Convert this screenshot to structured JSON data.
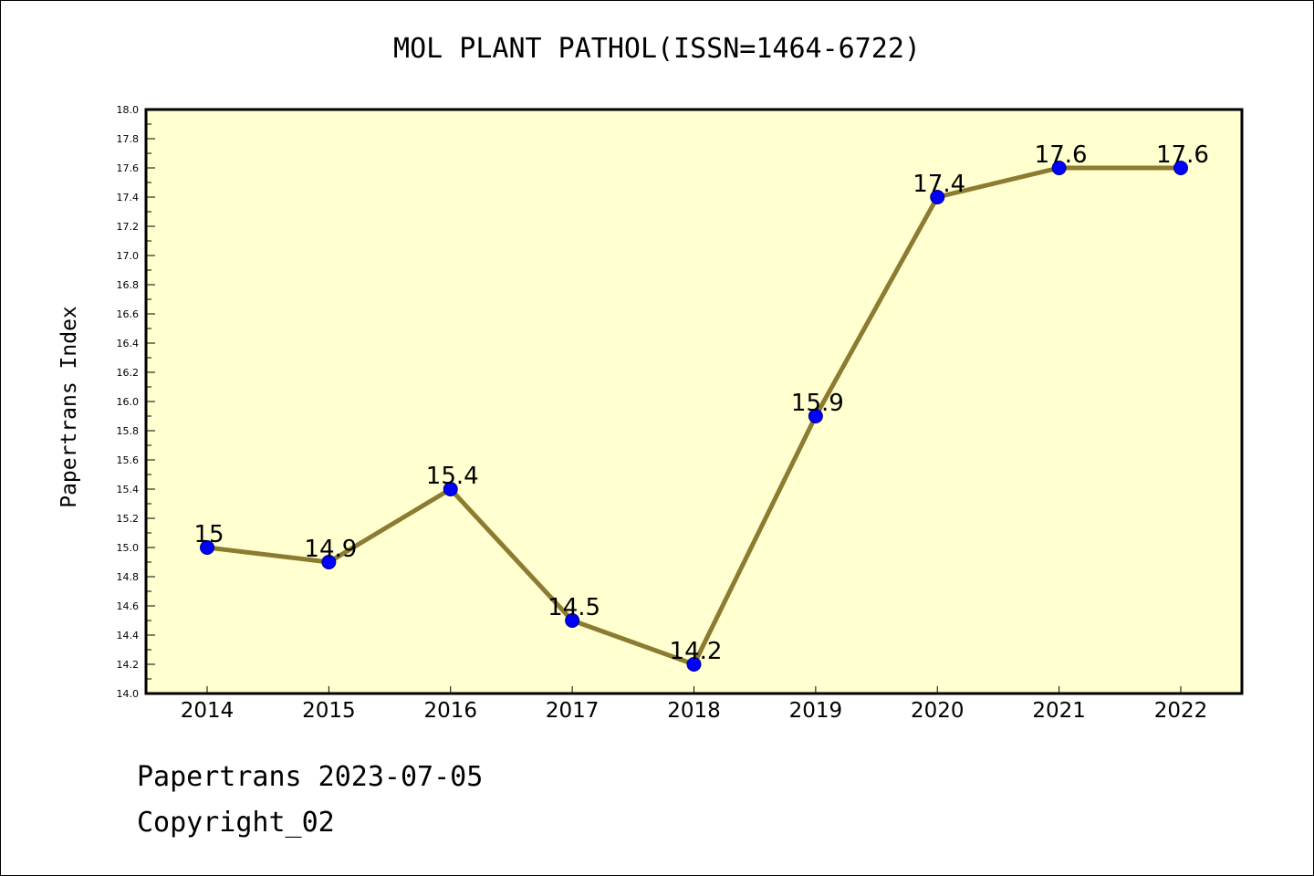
{
  "chart_data": {
    "type": "line",
    "title": "MOL PLANT PATHOL(ISSN=1464-6722)",
    "xlabel": "",
    "ylabel": "Papertrans Index",
    "categories": [
      "2014",
      "2015",
      "2016",
      "2017",
      "2018",
      "2019",
      "2020",
      "2021",
      "2022"
    ],
    "series": [
      {
        "values": [
          15,
          14.9,
          15.4,
          14.5,
          14.2,
          15.9,
          17.4,
          17.6,
          17.6
        ],
        "data_labels": [
          "15",
          "14.9",
          "15.4",
          "14.5",
          "14.2",
          "15.9",
          "17.4",
          "17.6",
          "17.6"
        ]
      }
    ],
    "ylim": [
      14.0,
      18.0
    ],
    "yticks": [
      "14.0",
      "14.2",
      "14.4",
      "14.6",
      "14.8",
      "15.0",
      "15.2",
      "15.4",
      "15.6",
      "15.8",
      "16.0",
      "16.2",
      "16.4",
      "16.6",
      "16.8",
      "17.0",
      "17.2",
      "17.4",
      "17.6",
      "17.8",
      "18.0"
    ],
    "grid": false,
    "colors": {
      "plot_background": "#ffffd0",
      "line": "#8c7b30",
      "marker_fill": "#0000ff",
      "marker_edge": "#000080"
    }
  },
  "footer": {
    "line1": "Papertrans 2023-07-05",
    "line2": "Copyright_02"
  }
}
